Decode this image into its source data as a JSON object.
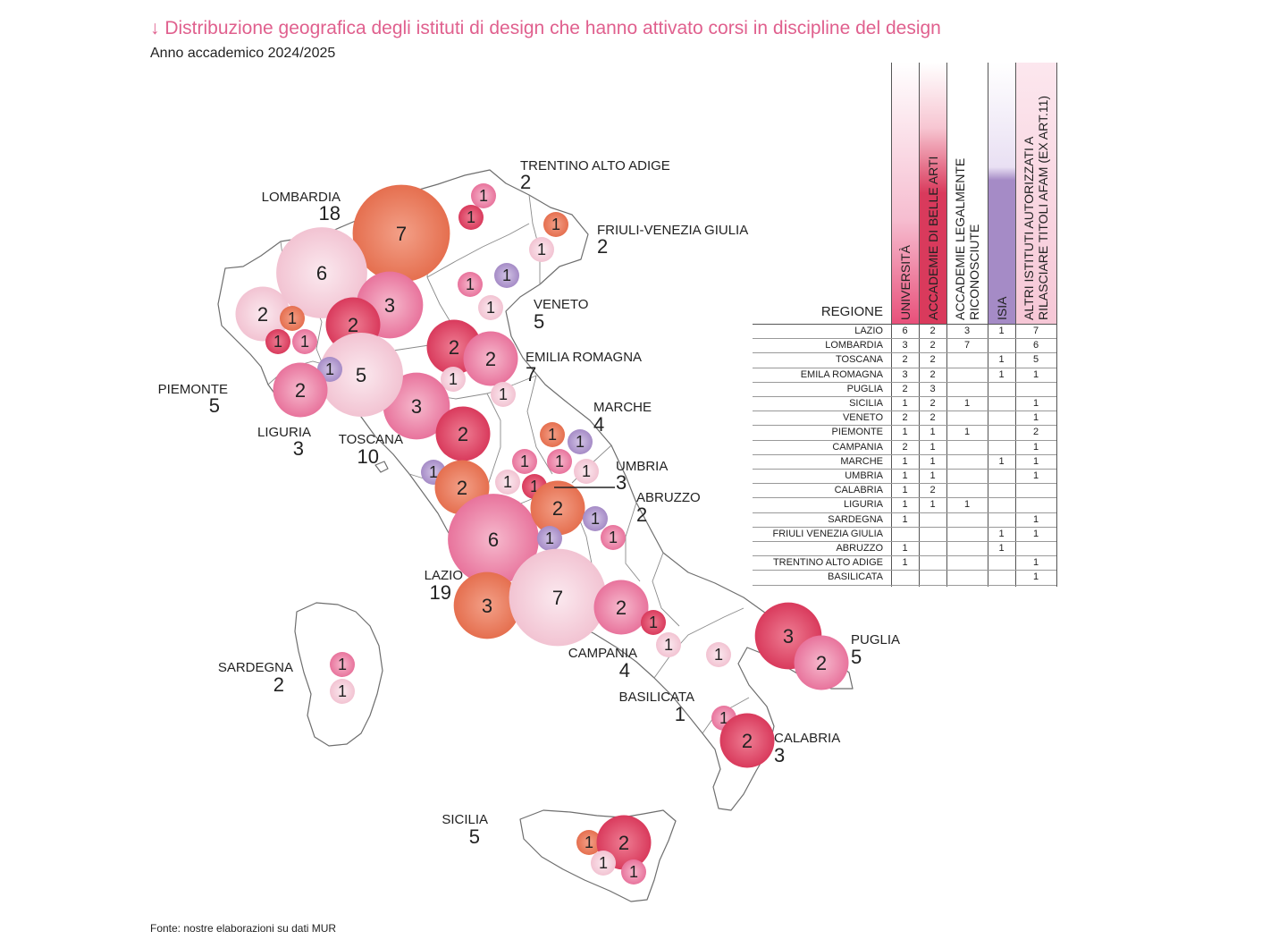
{
  "header": {
    "title": "↓ Distribuzione geografica degli istituti di design che hanno attivato corsi in discipline del design",
    "subtitle": "Anno accademico 2024/2025"
  },
  "footer": {
    "source": "Fonte: nostre elaborazioni su dati MUR"
  },
  "colors": {
    "title": "#e0608e",
    "universita": "#f2c3d2",
    "accademie_belle_arti": "#d93a5c",
    "accademie_riconosciute": "#e56f4f",
    "isia": "#a58bc6",
    "altri_istituti": "#e8739c",
    "map_stroke": "#6e6e6e",
    "map_fill": "#ffffff"
  },
  "regions": [
    {
      "name": "TRENTINO ALTO ADIGE",
      "total": "2"
    },
    {
      "name": "LOMBARDIA",
      "total": "18"
    },
    {
      "name": "FRIULI-VENEZIA GIULIA",
      "total": "2"
    },
    {
      "name": "VENETO",
      "total": "5"
    },
    {
      "name": "EMILIA ROMAGNA",
      "total": "7"
    },
    {
      "name": "PIEMONTE",
      "total": "5"
    },
    {
      "name": "LIGURIA",
      "total": "3"
    },
    {
      "name": "TOSCANA",
      "total": "10"
    },
    {
      "name": "MARCHE",
      "total": "4"
    },
    {
      "name": "UMBRIA",
      "total": "3"
    },
    {
      "name": "ABRUZZO",
      "total": "2"
    },
    {
      "name": "LAZIO",
      "total": "19"
    },
    {
      "name": "SARDEGNA",
      "total": "2"
    },
    {
      "name": "CAMPANIA",
      "total": "4"
    },
    {
      "name": "BASILICATA",
      "total": "1"
    },
    {
      "name": "PUGLIA",
      "total": "5"
    },
    {
      "name": "CALABRIA",
      "total": "3"
    },
    {
      "name": "SICILIA",
      "total": "5"
    }
  ],
  "bubbles": [
    {
      "value": "7",
      "type": "accademie_riconosciute"
    },
    {
      "value": "6",
      "type": "universita"
    },
    {
      "value": "3",
      "type": "altri_istituti"
    },
    {
      "value": "2",
      "type": "accademie_belle_arti"
    },
    {
      "value": "2",
      "type": "universita"
    },
    {
      "value": "1",
      "type": "accademie_riconosciute"
    },
    {
      "value": "1",
      "type": "accademie_belle_arti"
    },
    {
      "value": "1",
      "type": "altri_istituti"
    },
    {
      "value": "1",
      "type": "altri_istituti"
    },
    {
      "value": "1",
      "type": "accademie_belle_arti"
    },
    {
      "value": "1",
      "type": "accademie_riconosciute"
    },
    {
      "value": "1",
      "type": "universita"
    },
    {
      "value": "1",
      "type": "altri_istituti"
    },
    {
      "value": "1",
      "type": "isia"
    },
    {
      "value": "1",
      "type": "universita"
    },
    {
      "value": "2",
      "type": "accademie_belle_arti"
    },
    {
      "value": "2",
      "type": "altri_istituti"
    },
    {
      "value": "1",
      "type": "universita"
    },
    {
      "value": "1",
      "type": "universita"
    },
    {
      "value": "3",
      "type": "altri_istituti"
    },
    {
      "value": "2",
      "type": "accademie_belle_arti"
    },
    {
      "value": "1",
      "type": "isia"
    },
    {
      "value": "2",
      "type": "accademie_riconosciute"
    },
    {
      "value": "5",
      "type": "universita"
    },
    {
      "value": "1",
      "type": "isia"
    },
    {
      "value": "2",
      "type": "altri_istituti"
    },
    {
      "value": "6",
      "type": "altri_istituti"
    },
    {
      "value": "1",
      "type": "accademie_riconosciute"
    },
    {
      "value": "1",
      "type": "isia"
    },
    {
      "value": "1",
      "type": "altri_istituti"
    },
    {
      "value": "1",
      "type": "altri_istituti"
    },
    {
      "value": "1",
      "type": "universita"
    },
    {
      "value": "1",
      "type": "universita"
    },
    {
      "value": "1",
      "type": "accademie_belle_arti"
    },
    {
      "value": "2",
      "type": "accademie_riconosciute"
    },
    {
      "value": "1",
      "type": "isia"
    },
    {
      "value": "1",
      "type": "isia"
    },
    {
      "value": "1",
      "type": "altri_istituti"
    },
    {
      "value": "3",
      "type": "accademie_riconosciute"
    },
    {
      "value": "7",
      "type": "universita"
    },
    {
      "value": "2",
      "type": "altri_istituti"
    },
    {
      "value": "1",
      "type": "accademie_belle_arti"
    },
    {
      "value": "1",
      "type": "universita"
    },
    {
      "value": "1",
      "type": "universita"
    },
    {
      "value": "3",
      "type": "accademie_belle_arti"
    },
    {
      "value": "2",
      "type": "altri_istituti"
    },
    {
      "value": "1",
      "type": "altri_istituti"
    },
    {
      "value": "2",
      "type": "accademie_belle_arti"
    },
    {
      "value": "1",
      "type": "altri_istituti"
    },
    {
      "value": "1",
      "type": "universita"
    },
    {
      "value": "1",
      "type": "accademie_riconosciute"
    },
    {
      "value": "2",
      "type": "accademie_belle_arti"
    },
    {
      "value": "1",
      "type": "universita"
    },
    {
      "value": "1",
      "type": "altri_istituti"
    }
  ],
  "table": {
    "row_header": "REGIONE",
    "columns": [
      "UNIVERSITÀ",
      "ACCADEMIE DI BELLE ARTI",
      "ACCADEMIE LEGALMENTE|RICONOSCIUTE",
      "ISIA",
      "ALTRI ISTITUTI AUTORIZZATI A|RILASCIARE TITOLI AFAM (EX ART.11)"
    ],
    "rows": [
      {
        "region": "LAZIO",
        "values": [
          "6",
          "2",
          "3",
          "1",
          "7"
        ]
      },
      {
        "region": "LOMBARDIA",
        "values": [
          "3",
          "2",
          "7",
          "",
          "6"
        ]
      },
      {
        "region": "TOSCANA",
        "values": [
          "2",
          "2",
          "",
          "1",
          "5"
        ]
      },
      {
        "region": "EMILA ROMAGNA",
        "values": [
          "3",
          "2",
          "",
          "1",
          "1"
        ]
      },
      {
        "region": "PUGLIA",
        "values": [
          "2",
          "3",
          "",
          "",
          ""
        ]
      },
      {
        "region": "SICILIA",
        "values": [
          "1",
          "2",
          "1",
          "",
          "1"
        ]
      },
      {
        "region": "VENETO",
        "values": [
          "2",
          "2",
          "",
          "",
          "1"
        ]
      },
      {
        "region": "PIEMONTE",
        "values": [
          "1",
          "1",
          "1",
          "",
          "2"
        ]
      },
      {
        "region": "CAMPANIA",
        "values": [
          "2",
          "1",
          "",
          "",
          "1"
        ]
      },
      {
        "region": "MARCHE",
        "values": [
          "1",
          "1",
          "",
          "1",
          "1"
        ]
      },
      {
        "region": "UMBRIA",
        "values": [
          "1",
          "1",
          "",
          "",
          "1"
        ]
      },
      {
        "region": "CALABRIA",
        "values": [
          "1",
          "2",
          "",
          "",
          ""
        ]
      },
      {
        "region": "LIGURIA",
        "values": [
          "1",
          "1",
          "1",
          "",
          ""
        ]
      },
      {
        "region": "SARDEGNA",
        "values": [
          "1",
          "",
          "",
          "",
          "1"
        ]
      },
      {
        "region": "FRIULI VENEZIA GIULIA",
        "values": [
          "",
          "",
          "",
          "1",
          "1"
        ]
      },
      {
        "region": "ABRUZZO",
        "values": [
          "1",
          "",
          "",
          "1",
          ""
        ]
      },
      {
        "region": "TRENTINO ALTO ADIGE",
        "values": [
          "1",
          "",
          "",
          "",
          "1"
        ]
      },
      {
        "region": "BASILICATA",
        "values": [
          "",
          "",
          "",
          "",
          "1"
        ]
      }
    ]
  }
}
